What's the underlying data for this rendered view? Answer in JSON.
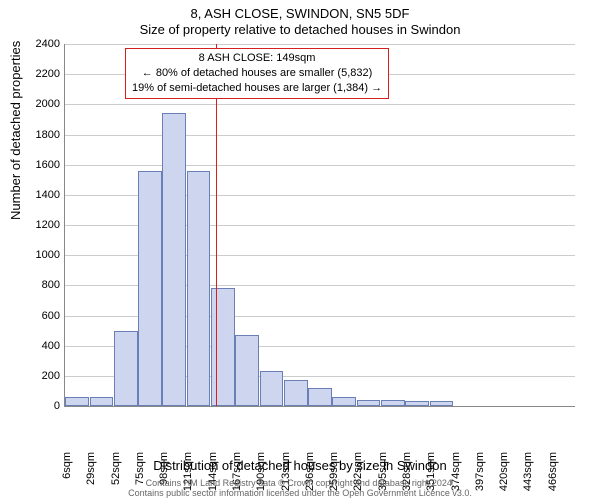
{
  "title": "8, ASH CLOSE, SWINDON, SN5 5DF",
  "subtitle": "Size of property relative to detached houses in Swindon",
  "y_axis": {
    "label": "Number of detached properties",
    "min": 0,
    "max": 2400,
    "step": 200
  },
  "x_axis": {
    "label": "Distribution of detached houses by size in Swindon",
    "start": 6,
    "step": 23,
    "count": 21,
    "unit": "sqm"
  },
  "bars": {
    "values": [
      60,
      60,
      500,
      1560,
      1940,
      1560,
      780,
      470,
      230,
      170,
      120,
      60,
      40,
      40,
      30,
      30,
      0,
      0,
      0,
      0,
      0
    ],
    "fill": "#cdd6ee",
    "stroke": "#6a7fb5"
  },
  "marker": {
    "value_sqm": 149,
    "color": "#d62020"
  },
  "info_box": {
    "line1": "8 ASH CLOSE: 149sqm",
    "line2": "← 80% of detached houses are smaller (5,832)",
    "line3": "19% of semi-detached houses are larger (1,384) →",
    "border_color": "#d62020"
  },
  "footer": {
    "line1": "Contains HM Land Registry data © Crown copyright and database right 2024.",
    "line2": "Contains public sector information licensed under the Open Government Licence v3.0."
  },
  "style": {
    "background": "#ffffff",
    "grid_color": "#cccccc",
    "axis_color": "#888888",
    "font_family": "Arial",
    "title_fontsize": 13,
    "tick_fontsize": 11,
    "label_fontsize": 13,
    "footer_fontsize": 9
  }
}
